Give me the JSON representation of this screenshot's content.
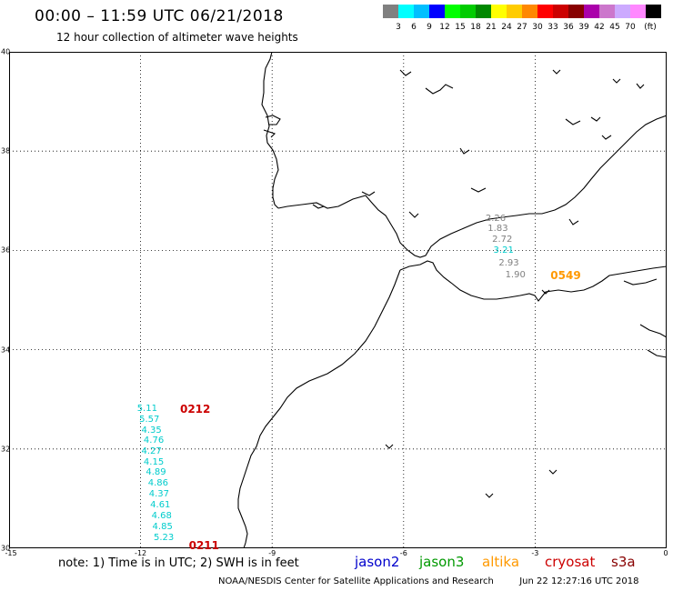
{
  "header": {
    "title": "00:00 – 11:59 UTC 06/21/2018",
    "subtitle": "12 hour collection of altimeter wave heights"
  },
  "colorbar": {
    "unit": "(ft)",
    "cells": [
      "#808080",
      "#00ffff",
      "#00bfff",
      "#0000ff",
      "#00ff00",
      "#00cc00",
      "#008800",
      "#ffff00",
      "#ffcc00",
      "#ff8800",
      "#ff0000",
      "#cc0000",
      "#880000",
      "#aa00aa",
      "#cc77cc",
      "#ccaaff",
      "#ff88ff",
      "#000000"
    ],
    "labels": [
      "3",
      "6",
      "9",
      "12",
      "15",
      "18",
      "21",
      "24",
      "27",
      "30",
      "33",
      "36",
      "39",
      "42",
      "45",
      "70"
    ]
  },
  "map": {
    "extent": {
      "lon": [
        -15,
        0
      ],
      "lat": [
        30,
        40
      ]
    },
    "lat_ticks": [
      "40",
      "38",
      "36",
      "34",
      "32",
      "30"
    ],
    "lon_ticks": [
      "-15",
      "-12",
      "-9",
      "-6",
      "-3",
      "0"
    ]
  },
  "tracks": [
    {
      "satellite": "cryosat",
      "color": "#00cccc",
      "time_labels": [
        {
          "text": "0212",
          "color": "#cc0000",
          "lon": -11.1,
          "lat": 32.8
        },
        {
          "text": "0211",
          "color": "#cc0000",
          "lon": -10.9,
          "lat": 30.05
        }
      ],
      "points": [
        {
          "lon": -11.85,
          "lat": 32.8,
          "swh": "5.11"
        },
        {
          "lon": -11.8,
          "lat": 32.58,
          "swh": "5.57"
        },
        {
          "lon": -11.75,
          "lat": 32.37,
          "swh": "4.35"
        },
        {
          "lon": -11.7,
          "lat": 32.16,
          "swh": "4.76"
        },
        {
          "lon": -11.75,
          "lat": 31.95,
          "swh": "4.27"
        },
        {
          "lon": -11.7,
          "lat": 31.73,
          "swh": "4.15"
        },
        {
          "lon": -11.65,
          "lat": 31.52,
          "swh": "4.89"
        },
        {
          "lon": -11.6,
          "lat": 31.3,
          "swh": "4.86"
        },
        {
          "lon": -11.58,
          "lat": 31.08,
          "swh": "4.37"
        },
        {
          "lon": -11.55,
          "lat": 30.86,
          "swh": "4.61"
        },
        {
          "lon": -11.52,
          "lat": 30.64,
          "swh": "4.68"
        },
        {
          "lon": -11.5,
          "lat": 30.42,
          "swh": "4.85"
        },
        {
          "lon": -11.47,
          "lat": 30.2,
          "swh": "5.23"
        }
      ]
    },
    {
      "satellite": "altika",
      "color": "#808080",
      "time_labels": [
        {
          "text": "0549",
          "color": "#ff9900",
          "lon": -2.65,
          "lat": 35.5
        }
      ],
      "points": [
        {
          "lon": -3.9,
          "lat": 36.63,
          "swh": "2.26",
          "color": "#808080"
        },
        {
          "lon": -3.85,
          "lat": 36.42,
          "swh": "1.83",
          "color": "#808080"
        },
        {
          "lon": -3.75,
          "lat": 36.2,
          "swh": "2.72",
          "color": "#808080"
        },
        {
          "lon": -3.72,
          "lat": 35.98,
          "swh": "3.21",
          "color": "#00cccc"
        },
        {
          "lon": -3.6,
          "lat": 35.74,
          "swh": "2.93",
          "color": "#808080"
        },
        {
          "lon": -3.45,
          "lat": 35.5,
          "swh": "1.90",
          "color": "#808080"
        }
      ]
    }
  ],
  "note": "note: 1) Time is in UTC; 2) SWH is in feet",
  "satellites": [
    {
      "name": "jason2",
      "color": "#0000cc"
    },
    {
      "name": "jason3",
      "color": "#009900"
    },
    {
      "name": "altika",
      "color": "#ff9900"
    },
    {
      "name": "cryosat",
      "color": "#cc0000"
    },
    {
      "name": "s3a",
      "color": "#880000"
    }
  ],
  "credit": "NOAA/NESDIS Center for Satellite Applications and Research",
  "generated": "Jun 22 12:27:16 UTC 2018"
}
